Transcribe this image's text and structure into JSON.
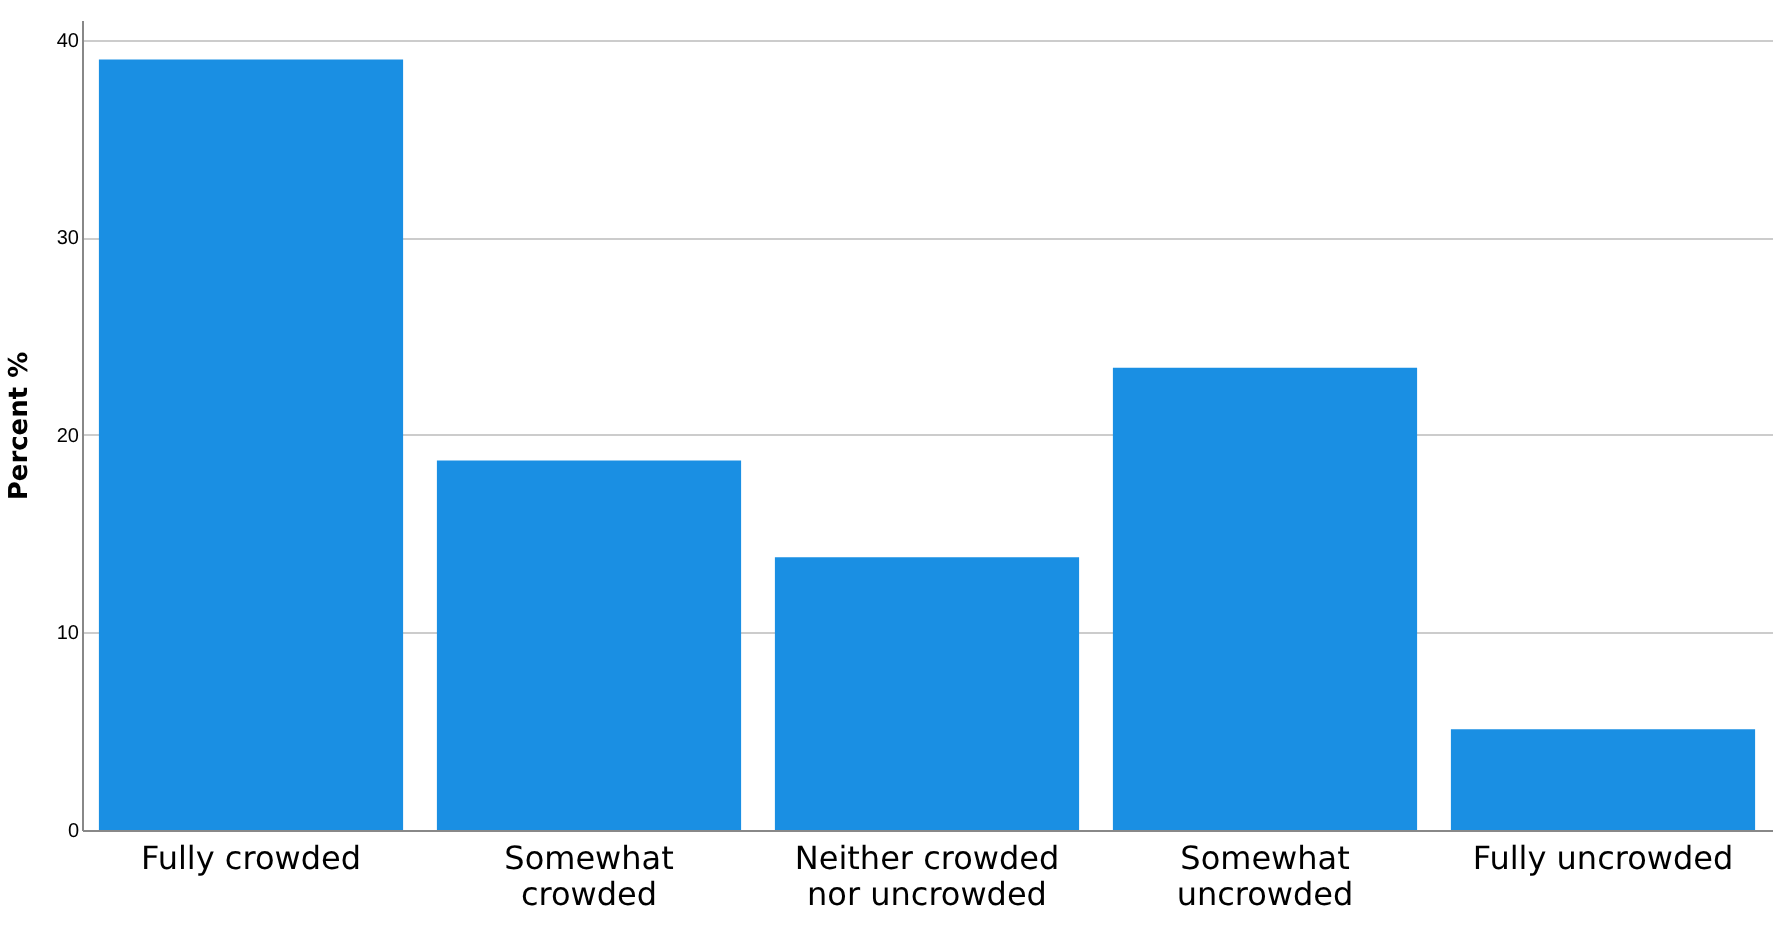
{
  "chart_data": {
    "type": "bar",
    "ylabel": "Percent %",
    "categories": [
      "Fully crowded",
      "Somewhat crowded",
      "Neither crowded nor uncrowded",
      "Somewhat uncrowded",
      "Fully uncrowded"
    ],
    "values": [
      39.0,
      18.7,
      13.8,
      23.4,
      5.1
    ],
    "color": "#1a8fe3",
    "ylim": [
      0,
      41
    ],
    "yticks": [
      0,
      10,
      20,
      30,
      40
    ],
    "grid": "y"
  }
}
